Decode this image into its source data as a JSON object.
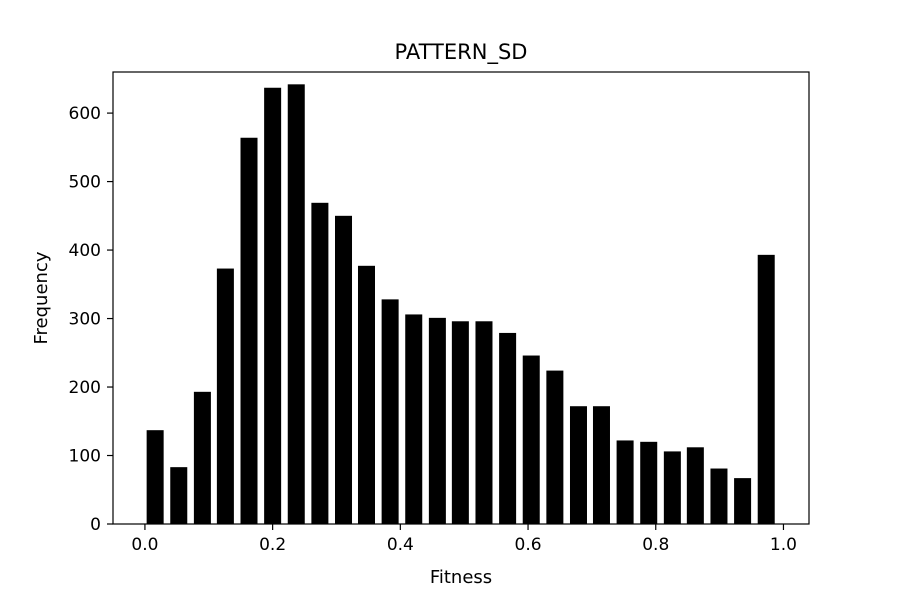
{
  "chart_data": {
    "type": "bar",
    "title": "PATTERN_SD",
    "xlabel": "Fitness",
    "ylabel": "Frequency",
    "bin_width": 0.0333,
    "bar_color": "#000000",
    "xlim": [
      -0.05,
      1.04
    ],
    "ylim": [
      0,
      660
    ],
    "xticks": [
      0.0,
      0.2,
      0.4,
      0.6,
      0.8,
      1.0
    ],
    "xtick_labels": [
      "0.0",
      "0.2",
      "0.4",
      "0.6",
      "0.8",
      "1.0"
    ],
    "yticks": [
      0,
      100,
      200,
      300,
      400,
      500,
      600
    ],
    "ytick_labels": [
      "0",
      "100",
      "200",
      "300",
      "400",
      "500",
      "600"
    ],
    "x": [
      0.016,
      0.053,
      0.09,
      0.126,
      0.163,
      0.2,
      0.237,
      0.274,
      0.311,
      0.347,
      0.384,
      0.421,
      0.458,
      0.494,
      0.531,
      0.568,
      0.605,
      0.642,
      0.679,
      0.715,
      0.752,
      0.789,
      0.826,
      0.862,
      0.899,
      0.936,
      0.973
    ],
    "values": [
      137,
      83,
      193,
      373,
      564,
      637,
      642,
      469,
      450,
      377,
      328,
      306,
      301,
      296,
      296,
      279,
      246,
      224,
      172,
      172,
      122,
      120,
      106,
      112,
      81,
      67,
      393
    ],
    "grid": false
  }
}
